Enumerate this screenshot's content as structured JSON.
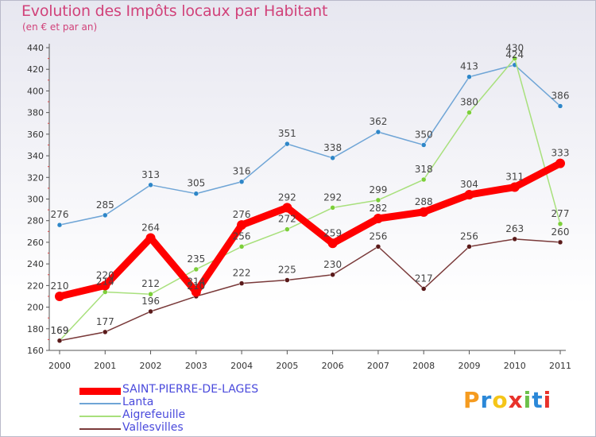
{
  "chart_data": {
    "type": "line",
    "title": "Evolution des Impôts locaux par Habitant",
    "subtitle": "(en € et par an)",
    "xlabel": "",
    "ylabel": "",
    "categories": [
      "2000",
      "2001",
      "2002",
      "2003",
      "2004",
      "2005",
      "2006",
      "2007",
      "2008",
      "2009",
      "2010",
      "2011"
    ],
    "ylim": [
      160,
      440
    ],
    "yticks": [
      "160",
      "180",
      "200",
      "220",
      "240",
      "260",
      "280",
      "300",
      "320",
      "340",
      "360",
      "380",
      "400",
      "420",
      "440"
    ],
    "grid": false,
    "series": [
      {
        "name": "Lanta",
        "color": "#6fa5d6",
        "marker": "#2e86c8",
        "values": [
          276,
          285,
          313,
          305,
          316,
          351,
          338,
          362,
          350,
          413,
          424,
          386
        ]
      },
      {
        "name": "Aigrefeuille",
        "color": "#a8e07c",
        "marker": "#7ccf3a",
        "values": [
          169,
          214,
          212,
          235,
          256,
          272,
          292,
          299,
          318,
          380,
          430,
          277
        ]
      },
      {
        "name": "Vallesvilles",
        "color": "#7a3a3a",
        "marker": "#5a1a1a",
        "values": [
          169,
          177,
          196,
          210,
          222,
          225,
          230,
          256,
          217,
          256,
          263,
          260
        ]
      },
      {
        "name": "SAINT-PIERRE-DE-LAGES",
        "color": "#ff0000",
        "marker": "#ff0000",
        "values": [
          210,
          220,
          264,
          214,
          276,
          292,
          259,
          282,
          288,
          304,
          311,
          333
        ]
      }
    ],
    "legend_order": [
      "SAINT-PIERRE-DE-LAGES",
      "Lanta",
      "Aigrefeuille",
      "Vallesvilles"
    ]
  },
  "brand": {
    "letters": [
      "P",
      "r",
      "o",
      "x",
      "i",
      "t",
      "i"
    ],
    "colors": [
      "#f59b1f",
      "#2b88d8",
      "#f5c518",
      "#e8322b",
      "#6cc04a",
      "#2b88d8",
      "#e8322b"
    ]
  }
}
